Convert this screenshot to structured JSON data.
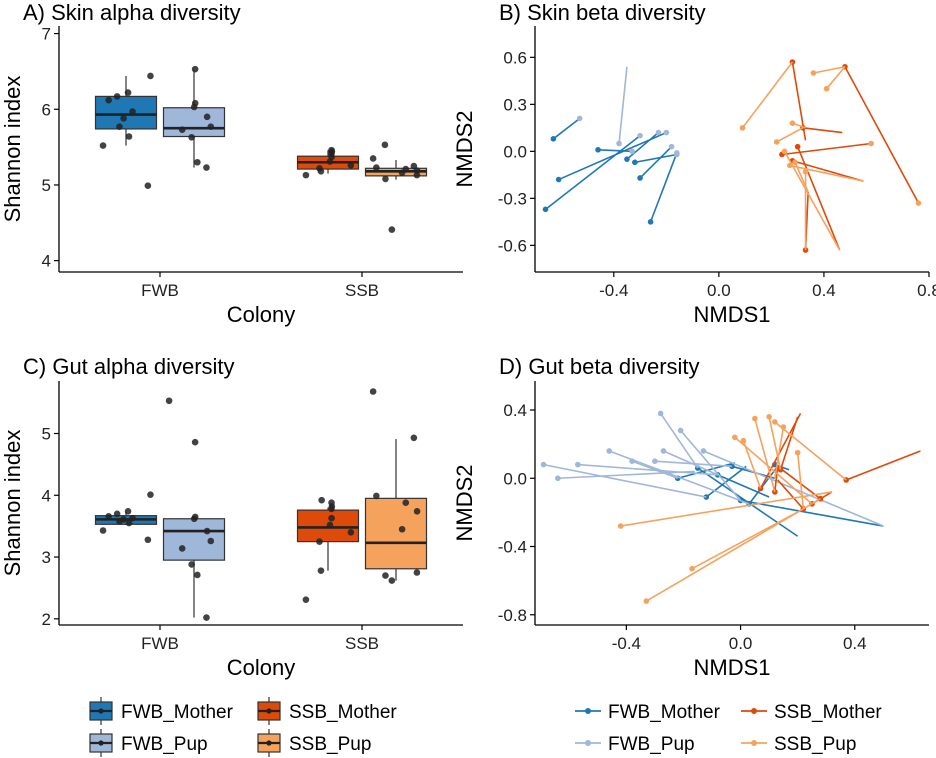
{
  "colors": {
    "FWB_Mother": "#1f78b4",
    "FWB_Pup": "#9fb7d9",
    "SSB_Mother": "#dd4a0a",
    "SSB_Pup": "#f5a25d",
    "points": "#222222",
    "axis": "#000000"
  },
  "legends": {
    "box": {
      "items": [
        {
          "key": "FWB_Mother",
          "label": "FWB_Mother"
        },
        {
          "key": "SSB_Mother",
          "label": "SSB_Mother"
        },
        {
          "key": "FWB_Pup",
          "label": "FWB_Pup"
        },
        {
          "key": "SSB_Pup",
          "label": "SSB_Pup"
        }
      ]
    },
    "line": {
      "items": [
        {
          "key": "FWB_Mother",
          "label": "FWB_Mother"
        },
        {
          "key": "SSB_Mother",
          "label": "SSB_Mother"
        },
        {
          "key": "FWB_Pup",
          "label": "FWB_Pup"
        },
        {
          "key": "SSB_Pup",
          "label": "SSB_Pup"
        }
      ]
    }
  },
  "chart_data": [
    {
      "id": "A",
      "type": "box",
      "title": "A) Skin alpha diversity",
      "xlabel": "Colony",
      "ylabel": "Shannon index",
      "categories": [
        "FWB",
        "SSB"
      ],
      "ylim": [
        3.85,
        7.1
      ],
      "yticks": [
        4,
        5,
        6,
        7
      ],
      "boxes": [
        {
          "colony": "FWB",
          "group": "FWB_Mother",
          "whisker_low": 5.52,
          "q1": 5.74,
          "median": 5.93,
          "q3": 6.17,
          "whisker_high": 6.44,
          "points": [
            4.99,
            5.52,
            5.64,
            5.77,
            5.88,
            5.97,
            6.12,
            6.17,
            6.22,
            6.44
          ]
        },
        {
          "colony": "FWB",
          "group": "FWB_Pup",
          "whisker_low": 5.23,
          "q1": 5.64,
          "median": 5.75,
          "q3": 6.02,
          "whisker_high": 6.52,
          "points": [
            5.23,
            5.3,
            5.63,
            5.73,
            5.77,
            5.9,
            6.03,
            6.08,
            6.53
          ]
        },
        {
          "colony": "SSB",
          "group": "SSB_Mother",
          "whisker_low": 5.15,
          "q1": 5.21,
          "median": 5.3,
          "q3": 5.38,
          "whisker_high": 5.46,
          "points": [
            5.13,
            5.18,
            5.22,
            5.26,
            5.31,
            5.37,
            5.41,
            5.44,
            5.46
          ]
        },
        {
          "colony": "SSB",
          "group": "SSB_Pup",
          "whisker_low": 5.07,
          "q1": 5.12,
          "median": 5.18,
          "q3": 5.22,
          "whisker_high": 5.33,
          "points": [
            4.41,
            5.08,
            5.13,
            5.16,
            5.19,
            5.21,
            5.23,
            5.25,
            5.35,
            5.53
          ]
        }
      ]
    },
    {
      "id": "B",
      "type": "scatter-segments",
      "title": "B) Skin beta diversity",
      "xlabel": "NMDS1",
      "ylabel": "NMDS2",
      "xlim": [
        -0.7,
        0.8
      ],
      "ylim": [
        -0.77,
        0.8
      ],
      "xticks": [
        -0.4,
        0.0,
        0.4,
        0.8
      ],
      "yticks": [
        -0.6,
        -0.3,
        0.0,
        0.3,
        0.6
      ],
      "segments": [
        {
          "group": "FWB_Mother",
          "x1": -0.66,
          "y1": -0.37,
          "x2": -0.3,
          "y2": 0.1
        },
        {
          "group": "FWB_Mother",
          "x1": -0.63,
          "y1": 0.08,
          "x2": -0.53,
          "y2": 0.21
        },
        {
          "group": "FWB_Mother",
          "x1": -0.61,
          "y1": -0.18,
          "x2": -0.2,
          "y2": 0.12
        },
        {
          "group": "FWB_Mother",
          "x1": -0.46,
          "y1": 0.01,
          "x2": -0.33,
          "y2": 0.0
        },
        {
          "group": "FWB_Mother",
          "x1": -0.35,
          "y1": -0.05,
          "x2": -0.23,
          "y2": 0.12
        },
        {
          "group": "FWB_Mother",
          "x1": -0.32,
          "y1": -0.07,
          "x2": -0.16,
          "y2": -0.02
        },
        {
          "group": "FWB_Mother",
          "x1": -0.26,
          "y1": -0.45,
          "x2": -0.16,
          "y2": -0.01
        },
        {
          "group": "FWB_Mother",
          "x1": -0.3,
          "y1": -0.17,
          "x2": -0.18,
          "y2": 0.03
        },
        {
          "group": "FWB_Pup",
          "x1": -0.38,
          "y1": 0.05,
          "x2": -0.35,
          "y2": 0.54
        },
        {
          "group": "SSB_Mother",
          "x1": 0.28,
          "y1": 0.57,
          "x2": 0.33,
          "y2": 0.07
        },
        {
          "group": "SSB_Mother",
          "x1": 0.48,
          "y1": 0.54,
          "x2": 0.76,
          "y2": -0.33
        },
        {
          "group": "SSB_Mother",
          "x1": 0.33,
          "y1": -0.63,
          "x2": 0.34,
          "y2": -0.26
        },
        {
          "group": "SSB_Mother",
          "x1": 0.3,
          "y1": 0.03,
          "x2": 0.46,
          "y2": -0.63
        },
        {
          "group": "SSB_Mother",
          "x1": 0.24,
          "y1": -0.02,
          "x2": 0.58,
          "y2": 0.05
        },
        {
          "group": "SSB_Mother",
          "x1": 0.32,
          "y1": 0.15,
          "x2": 0.47,
          "y2": 0.12
        },
        {
          "group": "SSB_Mother",
          "x1": 0.28,
          "y1": -0.06,
          "x2": 0.55,
          "y2": -0.19
        },
        {
          "group": "SSB_Pup",
          "x1": 0.09,
          "y1": 0.15,
          "x2": 0.28,
          "y2": 0.57
        },
        {
          "group": "SSB_Pup",
          "x1": 0.36,
          "y1": 0.5,
          "x2": 0.48,
          "y2": 0.54
        },
        {
          "group": "SSB_Pup",
          "x1": 0.41,
          "y1": 0.4,
          "x2": 0.48,
          "y2": 0.54
        },
        {
          "group": "SSB_Pup",
          "x1": 0.28,
          "y1": 0.18,
          "x2": 0.33,
          "y2": 0.15
        },
        {
          "group": "SSB_Pup",
          "x1": 0.22,
          "y1": 0.06,
          "x2": 0.32,
          "y2": 0.15
        },
        {
          "group": "SSB_Pup",
          "x1": 0.25,
          "y1": 0.0,
          "x2": 0.46,
          "y2": -0.63
        },
        {
          "group": "SSB_Pup",
          "x1": 0.29,
          "y1": -0.07,
          "x2": 0.34,
          "y2": -0.26
        },
        {
          "group": "SSB_Pup",
          "x1": 0.27,
          "y1": -0.09,
          "x2": 0.55,
          "y2": -0.19
        },
        {
          "group": "SSB_Pup",
          "x1": 0.33,
          "y1": -0.13,
          "x2": 0.33,
          "y2": -0.63
        }
      ],
      "extra_points": [
        {
          "group": "FWB_Pup",
          "x": -0.53,
          "y": 0.21
        },
        {
          "group": "FWB_Pup",
          "x": -0.3,
          "y": 0.1
        },
        {
          "group": "FWB_Pup",
          "x": -0.23,
          "y": 0.12
        },
        {
          "group": "FWB_Pup",
          "x": -0.2,
          "y": 0.12
        },
        {
          "group": "FWB_Pup",
          "x": -0.16,
          "y": -0.02
        },
        {
          "group": "FWB_Pup",
          "x": -0.18,
          "y": 0.03
        },
        {
          "group": "FWB_Pup",
          "x": -0.33,
          "y": 0.0
        },
        {
          "group": "FWB_Pup",
          "x": -0.16,
          "y": -0.01
        },
        {
          "group": "SSB_Pup",
          "x": 0.76,
          "y": -0.33
        },
        {
          "group": "SSB_Pup",
          "x": 0.58,
          "y": 0.05
        }
      ]
    },
    {
      "id": "C",
      "type": "box",
      "title": "C) Gut alpha diversity",
      "xlabel": "Colony",
      "ylabel": "Shannon index",
      "categories": [
        "FWB",
        "SSB"
      ],
      "ylim": [
        1.9,
        5.85
      ],
      "yticks": [
        2,
        3,
        4,
        5
      ],
      "boxes": [
        {
          "colony": "FWB",
          "group": "FWB_Mother",
          "whisker_low": 3.52,
          "q1": 3.53,
          "median": 3.61,
          "q3": 3.67,
          "whisker_high": 3.73,
          "points": [
            3.28,
            3.43,
            3.55,
            3.58,
            3.61,
            3.63,
            3.66,
            3.7,
            3.74,
            4.01
          ]
        },
        {
          "colony": "FWB",
          "group": "FWB_Pup",
          "whisker_low": 2.02,
          "q1": 2.95,
          "median": 3.42,
          "q3": 3.62,
          "whisker_high": 3.65,
          "points": [
            2.02,
            2.71,
            2.88,
            3.14,
            3.26,
            3.42,
            3.62,
            3.65,
            4.86,
            5.53
          ]
        },
        {
          "colony": "SSB",
          "group": "SSB_Mother",
          "whisker_low": 2.78,
          "q1": 3.25,
          "median": 3.48,
          "q3": 3.76,
          "whisker_high": 3.8,
          "points": [
            2.31,
            2.78,
            3.25,
            3.4,
            3.52,
            3.63,
            3.78,
            3.82,
            3.88,
            3.92
          ]
        },
        {
          "colony": "SSB",
          "group": "SSB_Pup",
          "whisker_low": 2.62,
          "q1": 2.81,
          "median": 3.23,
          "q3": 3.95,
          "whisker_high": 4.91,
          "points": [
            2.62,
            2.7,
            2.75,
            3.45,
            3.74,
            3.88,
            3.99,
            4.93,
            5.68
          ]
        }
      ]
    },
    {
      "id": "D",
      "type": "scatter-segments",
      "title": "D) Gut beta diversity",
      "xlabel": "NMDS1",
      "ylabel": "NMDS2",
      "xlim": [
        -0.72,
        0.66
      ],
      "ylim": [
        -0.86,
        0.57
      ],
      "xticks": [
        -0.4,
        0.0,
        0.4
      ],
      "yticks": [
        -0.8,
        -0.4,
        0.0,
        0.4
      ],
      "segments": [
        {
          "group": "FWB_Mother",
          "x1": -0.22,
          "y1": 0.0,
          "x2": -0.02,
          "y2": 0.09
        },
        {
          "group": "FWB_Mother",
          "x1": -0.15,
          "y1": 0.06,
          "x2": 0.2,
          "y2": -0.34
        },
        {
          "group": "FWB_Mother",
          "x1": -0.12,
          "y1": -0.11,
          "x2": 0.02,
          "y2": 0.07
        },
        {
          "group": "FWB_Mother",
          "x1": -0.08,
          "y1": 0.02,
          "x2": 0.1,
          "y2": -0.11
        },
        {
          "group": "FWB_Mother",
          "x1": -0.03,
          "y1": 0.07,
          "x2": 0.12,
          "y2": 0.0
        },
        {
          "group": "FWB_Mother",
          "x1": 0.0,
          "y1": -0.13,
          "x2": 0.5,
          "y2": -0.28
        },
        {
          "group": "FWB_Mother",
          "x1": 0.03,
          "y1": -0.15,
          "x2": 0.13,
          "y2": 0.07
        },
        {
          "group": "FWB_Mother",
          "x1": 0.12,
          "y1": 0.08,
          "x2": 0.17,
          "y2": 0.05
        },
        {
          "group": "FWB_Pup",
          "x1": -0.69,
          "y1": 0.08,
          "x2": -0.12,
          "y2": -0.11
        },
        {
          "group": "FWB_Pup",
          "x1": -0.64,
          "y1": 0.0,
          "x2": -0.16,
          "y2": 0.04
        },
        {
          "group": "FWB_Pup",
          "x1": -0.57,
          "y1": 0.08,
          "x2": -0.08,
          "y2": 0.02
        },
        {
          "group": "FWB_Pup",
          "x1": -0.46,
          "y1": 0.16,
          "x2": 0.03,
          "y2": -0.15
        },
        {
          "group": "FWB_Pup",
          "x1": -0.38,
          "y1": 0.1,
          "x2": -0.22,
          "y2": 0.0
        },
        {
          "group": "FWB_Pup",
          "x1": -0.3,
          "y1": 0.1,
          "x2": -0.03,
          "y2": 0.07
        },
        {
          "group": "FWB_Pup",
          "x1": -0.28,
          "y1": 0.38,
          "x2": -0.15,
          "y2": 0.06
        },
        {
          "group": "FWB_Pup",
          "x1": -0.21,
          "y1": 0.28,
          "x2": 0.0,
          "y2": -0.13
        },
        {
          "group": "FWB_Pup",
          "x1": -0.13,
          "y1": 0.16,
          "x2": 0.5,
          "y2": -0.28
        },
        {
          "group": "FWB_Pup",
          "x1": -0.27,
          "y1": 0.16,
          "x2": -0.08,
          "y2": 0.02
        },
        {
          "group": "SSB_Mother",
          "x1": 0.07,
          "y1": -0.06,
          "x2": 0.21,
          "y2": 0.38
        },
        {
          "group": "SSB_Mother",
          "x1": 0.14,
          "y1": 0.05,
          "x2": 0.2,
          "y2": 0.36
        },
        {
          "group": "SSB_Mother",
          "x1": 0.12,
          "y1": -0.08,
          "x2": 0.13,
          "y2": 0.07
        },
        {
          "group": "SSB_Mother",
          "x1": 0.22,
          "y1": -0.18,
          "x2": 0.13,
          "y2": -0.01
        },
        {
          "group": "SSB_Mother",
          "x1": 0.25,
          "y1": -0.15,
          "x2": 0.32,
          "y2": -0.08
        },
        {
          "group": "SSB_Mother",
          "x1": 0.28,
          "y1": -0.12,
          "x2": 0.13,
          "y2": 0.07
        },
        {
          "group": "SSB_Mother",
          "x1": 0.37,
          "y1": -0.01,
          "x2": 0.63,
          "y2": 0.16
        },
        {
          "group": "SSB_Pup",
          "x1": -0.42,
          "y1": -0.28,
          "x2": 0.32,
          "y2": -0.08
        },
        {
          "group": "SSB_Pup",
          "x1": -0.33,
          "y1": -0.72,
          "x2": 0.28,
          "y2": -0.12
        },
        {
          "group": "SSB_Pup",
          "x1": -0.17,
          "y1": -0.53,
          "x2": 0.22,
          "y2": -0.18
        },
        {
          "group": "SSB_Pup",
          "x1": -0.02,
          "y1": 0.24,
          "x2": 0.25,
          "y2": -0.15
        },
        {
          "group": "SSB_Pup",
          "x1": 0.01,
          "y1": 0.22,
          "x2": 0.07,
          "y2": -0.06
        },
        {
          "group": "SSB_Pup",
          "x1": 0.05,
          "y1": 0.35,
          "x2": 0.12,
          "y2": -0.08
        },
        {
          "group": "SSB_Pup",
          "x1": 0.1,
          "y1": 0.36,
          "x2": 0.14,
          "y2": 0.05
        },
        {
          "group": "SSB_Pup",
          "x1": 0.12,
          "y1": 0.33,
          "x2": 0.37,
          "y2": -0.01
        },
        {
          "group": "SSB_Pup",
          "x1": 0.15,
          "y1": 0.3,
          "x2": 0.12,
          "y2": 0.0
        },
        {
          "group": "SSB_Pup",
          "x1": 0.2,
          "y1": 0.15,
          "x2": 0.22,
          "y2": -0.18
        }
      ],
      "extra_points": []
    }
  ]
}
